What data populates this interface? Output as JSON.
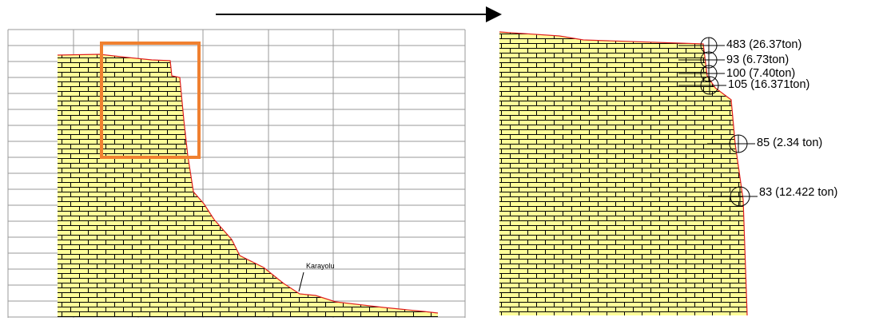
{
  "road_label": "Karayolu",
  "blocks": [
    {
      "label": "483 (26.37ton)"
    },
    {
      "label": "93 (6.73ton)"
    },
    {
      "label": "100 (7.40ton)"
    },
    {
      "label": "105 (16.371ton)"
    },
    {
      "label": "85 (2.34 ton)"
    },
    {
      "label": "83 (12.422 ton)"
    }
  ]
}
